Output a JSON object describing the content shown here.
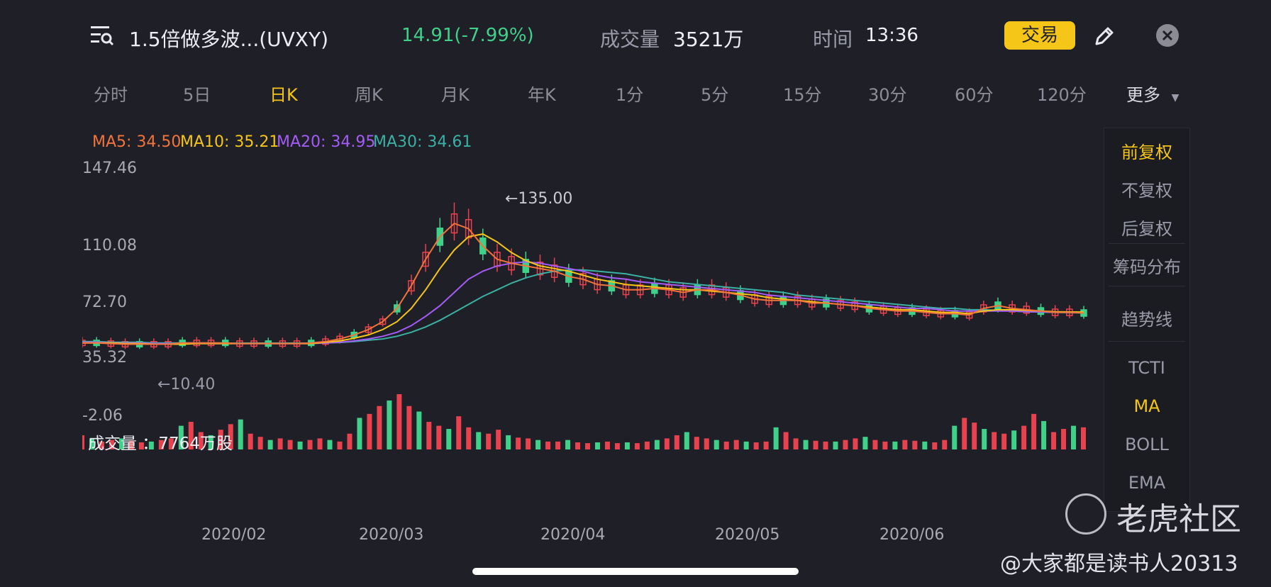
{
  "header": {
    "title": "1.5倍做多波...(UVXY)",
    "price_change": "14.91(-7.99%)",
    "volume_label": "成交量",
    "volume_value": "3521万",
    "time_label": "时间",
    "time_value": "13:36",
    "trade_label": "交易"
  },
  "tabs": [
    {
      "label": "分时"
    },
    {
      "label": "5日"
    },
    {
      "label": "日K"
    },
    {
      "label": "周K"
    },
    {
      "label": "月K"
    },
    {
      "label": "年K"
    },
    {
      "label": "1分"
    },
    {
      "label": "5分"
    },
    {
      "label": "15分"
    },
    {
      "label": "30分"
    },
    {
      "label": "60分"
    },
    {
      "label": "120分"
    },
    {
      "label": "更多"
    }
  ],
  "ma_legend": {
    "ma5": "MA5: 34.50",
    "ma10": "MA10: 35.21",
    "ma20": "MA20: 34.95",
    "ma30": "MA30: 34.61"
  },
  "colors": {
    "up": "#e8424f",
    "down": "#3fd18a",
    "ma5": "#f2733c",
    "ma10": "#f5c518",
    "ma20": "#a35cf5",
    "ma30": "#3bb0a4",
    "accent": "#f5c518"
  },
  "chart_data": {
    "type": "candlestick",
    "y_ticks": [
      "147.46",
      "110.08",
      "72.70",
      "35.32",
      "-2.06"
    ],
    "x_ticks": [
      "2020/02",
      "2020/03",
      "2020/04",
      "2020/05",
      "2020/06"
    ],
    "high_annotation": "←135.00",
    "low_annotation": "←10.40",
    "volume_label": "成交量 ：7764万股",
    "ma5": [
      12,
      12,
      11.5,
      11,
      11,
      11,
      11,
      12,
      12,
      12,
      12,
      11.5,
      11.5,
      11.5,
      11.5,
      11.5,
      12,
      13,
      15,
      18,
      22,
      28,
      38,
      55,
      75,
      92,
      102,
      98,
      85,
      75,
      72,
      70,
      68,
      66,
      62,
      60,
      56,
      55,
      52,
      52,
      53,
      52,
      50,
      52,
      52,
      50,
      48,
      45,
      44,
      44,
      44,
      42,
      42,
      41,
      40,
      38,
      37,
      36,
      36,
      35,
      34,
      34,
      33,
      38,
      40,
      38,
      37,
      36,
      35,
      35,
      34.5
    ],
    "ma10": [
      12,
      12,
      12,
      11.5,
      11.5,
      11,
      11,
      11,
      11.5,
      11.5,
      11.5,
      11.5,
      11.5,
      11.5,
      11.5,
      11.5,
      11.5,
      12.5,
      13.5,
      15.5,
      18,
      22,
      28,
      38,
      52,
      68,
      82,
      92,
      94,
      88,
      80,
      74,
      70,
      68,
      66,
      63,
      60,
      58,
      56,
      55,
      54,
      53,
      52,
      52,
      51,
      50,
      49,
      48,
      46,
      45,
      44,
      43,
      42,
      41,
      40,
      39,
      38,
      37,
      37,
      36,
      35,
      35,
      34,
      36,
      37,
      37,
      36.5,
      36,
      35.5,
      35.3,
      35.2
    ],
    "ma20": [
      12.5,
      12.5,
      12,
      12,
      12,
      11.5,
      11.5,
      11.5,
      11.5,
      11.5,
      11.5,
      11.5,
      11.5,
      11.5,
      11.5,
      11.5,
      11.5,
      12,
      12.5,
      13.5,
      15,
      17,
      20,
      25,
      32,
      40,
      50,
      60,
      66,
      70,
      72,
      73,
      72,
      70,
      68,
      66,
      63,
      61,
      60,
      58,
      57,
      56,
      55,
      54,
      53,
      52,
      51,
      50,
      48,
      47,
      46,
      45,
      44,
      43,
      42,
      41,
      40,
      39,
      38,
      38,
      37,
      36,
      36,
      36,
      36,
      36,
      35.5,
      35.3,
      35.1,
      35,
      34.95
    ],
    "ma30": [
      13,
      13,
      12.5,
      12.5,
      12.5,
      12,
      12,
      12,
      12,
      12,
      11.8,
      11.8,
      11.8,
      11.8,
      11.8,
      11.8,
      11.8,
      12,
      12.3,
      13,
      14,
      15,
      17,
      20,
      24,
      29,
      35,
      41,
      47,
      52,
      57,
      61,
      64,
      66,
      67,
      67,
      66,
      65,
      64,
      62,
      60,
      58,
      57,
      56,
      55,
      54,
      53,
      52,
      51,
      50,
      48,
      47,
      46,
      45,
      44,
      43,
      42,
      41,
      40,
      39,
      38,
      38,
      37,
      37,
      36.5,
      36,
      35.5,
      35.2,
      35,
      34.8,
      34.61
    ],
    "volume_bars": [
      18,
      14,
      10,
      12,
      14,
      11,
      9,
      10,
      12,
      14,
      30,
      35,
      22,
      18,
      25,
      32,
      38,
      20,
      16,
      12,
      14,
      12,
      10,
      12,
      14,
      12,
      10,
      20,
      40,
      45,
      55,
      62,
      70,
      55,
      48,
      35,
      30,
      26,
      42,
      28,
      22,
      20,
      25,
      18,
      15,
      14,
      12,
      10,
      10,
      12,
      9,
      8,
      9,
      10,
      8,
      9,
      8,
      10,
      12,
      14,
      18,
      22,
      16,
      14,
      12,
      10,
      12,
      10,
      9,
      10,
      28,
      22,
      14,
      12,
      11,
      10,
      10,
      12,
      14,
      16,
      12,
      10,
      10,
      12,
      11,
      10,
      9,
      12,
      30,
      40,
      34,
      26,
      22,
      20,
      24,
      30,
      45,
      36,
      22,
      26,
      30,
      28
    ]
  },
  "side_panel": {
    "items": [
      "前复权",
      "不复权",
      "后复权",
      "筹码分布",
      "趋势线",
      "TCTI",
      "MA",
      "BOLL",
      "EMA"
    ]
  },
  "watermark": {
    "brand": "老虎社区",
    "user": "@大家都是读书人20313"
  }
}
